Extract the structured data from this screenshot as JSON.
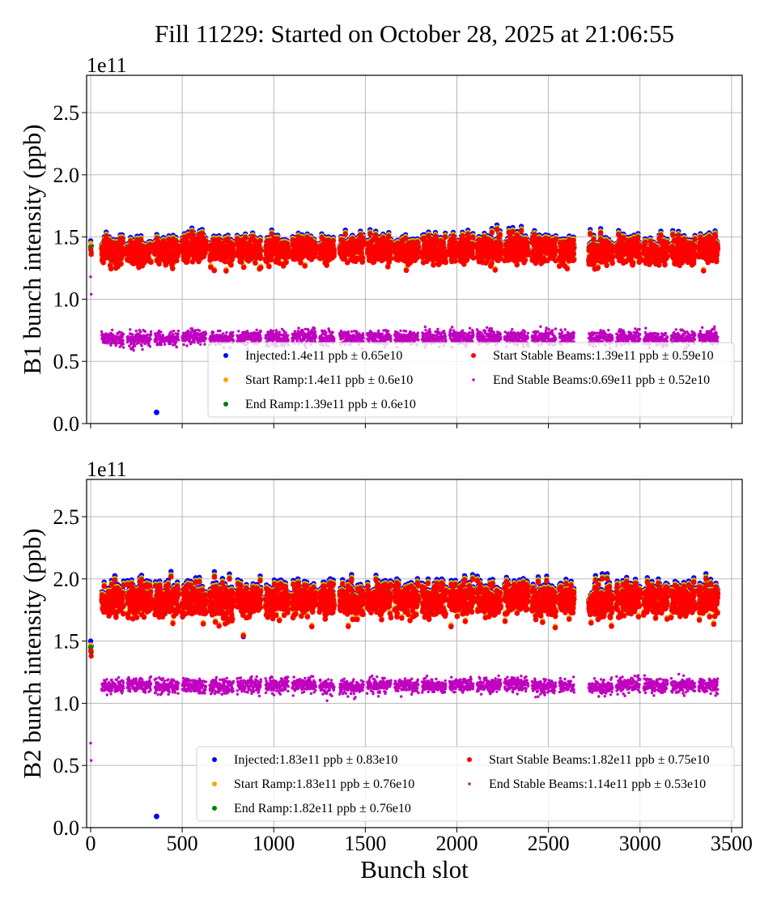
{
  "title": "Fill 11229: Started on October 28, 2025 at 21:06:55",
  "chart_data": [
    {
      "type": "scatter",
      "ylabel": "B1 bunch intensity (ppb)",
      "xlabel": "",
      "offset_text": "1e11",
      "xlim": [
        -22,
        3558
      ],
      "ylim": [
        0,
        2.8
      ],
      "y_scale": "1e11",
      "grid": true,
      "legend_placement": "lower-right",
      "xticks": [
        0,
        500,
        1000,
        1500,
        2000,
        2500,
        3000,
        3500
      ],
      "xtick_labels_shown": false,
      "yticks": [
        "0.0",
        "0.5",
        "1.0",
        "1.5",
        "2.0",
        "2.5"
      ],
      "trains": [
        [
          60,
          180
        ],
        [
          200,
          330
        ],
        [
          350,
          480
        ],
        [
          500,
          630
        ],
        [
          650,
          780
        ],
        [
          800,
          930
        ],
        [
          955,
          1080
        ],
        [
          1100,
          1230
        ],
        [
          1250,
          1330
        ],
        [
          1360,
          1490
        ],
        [
          1510,
          1640
        ],
        [
          1660,
          1790
        ],
        [
          1810,
          1940
        ],
        [
          1960,
          2090
        ],
        [
          2110,
          2240
        ],
        [
          2260,
          2390
        ],
        [
          2410,
          2540
        ],
        [
          2560,
          2640
        ],
        [
          2720,
          2850
        ],
        [
          2870,
          3000
        ],
        [
          3020,
          3150
        ],
        [
          3170,
          3300
        ],
        [
          3320,
          3425
        ]
      ],
      "pilot": {
        "slot": 0,
        "values": [
          1.47,
          1.45,
          1.42,
          1.4,
          1.18
        ]
      },
      "outliers": [
        {
          "series": "Injected",
          "slot": 360,
          "value": 0.09
        }
      ],
      "series": [
        {
          "name": "Injected",
          "label": "Injected:1.4e11 ppb ± 0.65e10",
          "mean": 1.4,
          "std": 0.065,
          "color": "#0000ff"
        },
        {
          "name": "Start Ramp",
          "label": "Start Ramp:1.4e11 ppb ± 0.6e10",
          "mean": 1.4,
          "std": 0.06,
          "color": "#ffa500"
        },
        {
          "name": "End Ramp",
          "label": "End Ramp:1.39e11 ppb ± 0.6e10",
          "mean": 1.39,
          "std": 0.06,
          "color": "#008000"
        },
        {
          "name": "Start Stable Beams",
          "label": "Start Stable Beams:1.39e11 ppb ± 0.59e10",
          "mean": 1.39,
          "std": 0.059,
          "color": "#ff0000"
        },
        {
          "name": "End Stable Beams",
          "label": "End Stable Beams:0.69e11 ppb ± 0.52e10",
          "mean": 0.69,
          "std": 0.052,
          "color": "#bf00bf"
        }
      ]
    },
    {
      "type": "scatter",
      "ylabel": "B2 bunch intensity (ppb)",
      "xlabel": "Bunch slot",
      "offset_text": "1e11",
      "xlim": [
        -22,
        3558
      ],
      "ylim": [
        0,
        2.8
      ],
      "y_scale": "1e11",
      "grid": true,
      "legend_placement": "lower-right",
      "xticks": [
        0,
        500,
        1000,
        1500,
        2000,
        2500,
        3000,
        3500
      ],
      "xtick_labels_shown": true,
      "yticks": [
        "0.0",
        "0.5",
        "1.0",
        "1.5",
        "2.0",
        "2.5"
      ],
      "trains": [
        [
          60,
          180
        ],
        [
          200,
          330
        ],
        [
          350,
          480
        ],
        [
          500,
          630
        ],
        [
          650,
          780
        ],
        [
          800,
          930
        ],
        [
          955,
          1080
        ],
        [
          1100,
          1230
        ],
        [
          1250,
          1330
        ],
        [
          1360,
          1490
        ],
        [
          1510,
          1640
        ],
        [
          1660,
          1790
        ],
        [
          1810,
          1940
        ],
        [
          1960,
          2090
        ],
        [
          2110,
          2240
        ],
        [
          2260,
          2390
        ],
        [
          2410,
          2540
        ],
        [
          2560,
          2640
        ],
        [
          2720,
          2850
        ],
        [
          2870,
          3000
        ],
        [
          3020,
          3150
        ],
        [
          3170,
          3300
        ],
        [
          3320,
          3425
        ]
      ],
      "pilot": {
        "slot": 0,
        "values": [
          1.5,
          1.47,
          1.45,
          1.42,
          0.68
        ]
      },
      "outliers": [
        {
          "series": "Injected",
          "slot": 360,
          "value": 0.09
        }
      ],
      "series": [
        {
          "name": "Injected",
          "label": "Injected:1.83e11 ppb ± 0.83e10",
          "mean": 1.83,
          "std": 0.083,
          "color": "#0000ff"
        },
        {
          "name": "Start Ramp",
          "label": "Start Ramp:1.83e11 ppb ± 0.76e10",
          "mean": 1.83,
          "std": 0.076,
          "color": "#ffa500"
        },
        {
          "name": "End Ramp",
          "label": "End Ramp:1.82e11 ppb ± 0.76e10",
          "mean": 1.82,
          "std": 0.076,
          "color": "#008000"
        },
        {
          "name": "Start Stable Beams",
          "label": "Start Stable Beams:1.82e11 ppb ± 0.75e10",
          "mean": 1.82,
          "std": 0.075,
          "color": "#ff0000"
        },
        {
          "name": "End Stable Beams",
          "label": "End Stable Beams:1.14e11 ppb ± 0.53e10",
          "mean": 1.14,
          "std": 0.053,
          "color": "#bf00bf"
        }
      ]
    }
  ]
}
